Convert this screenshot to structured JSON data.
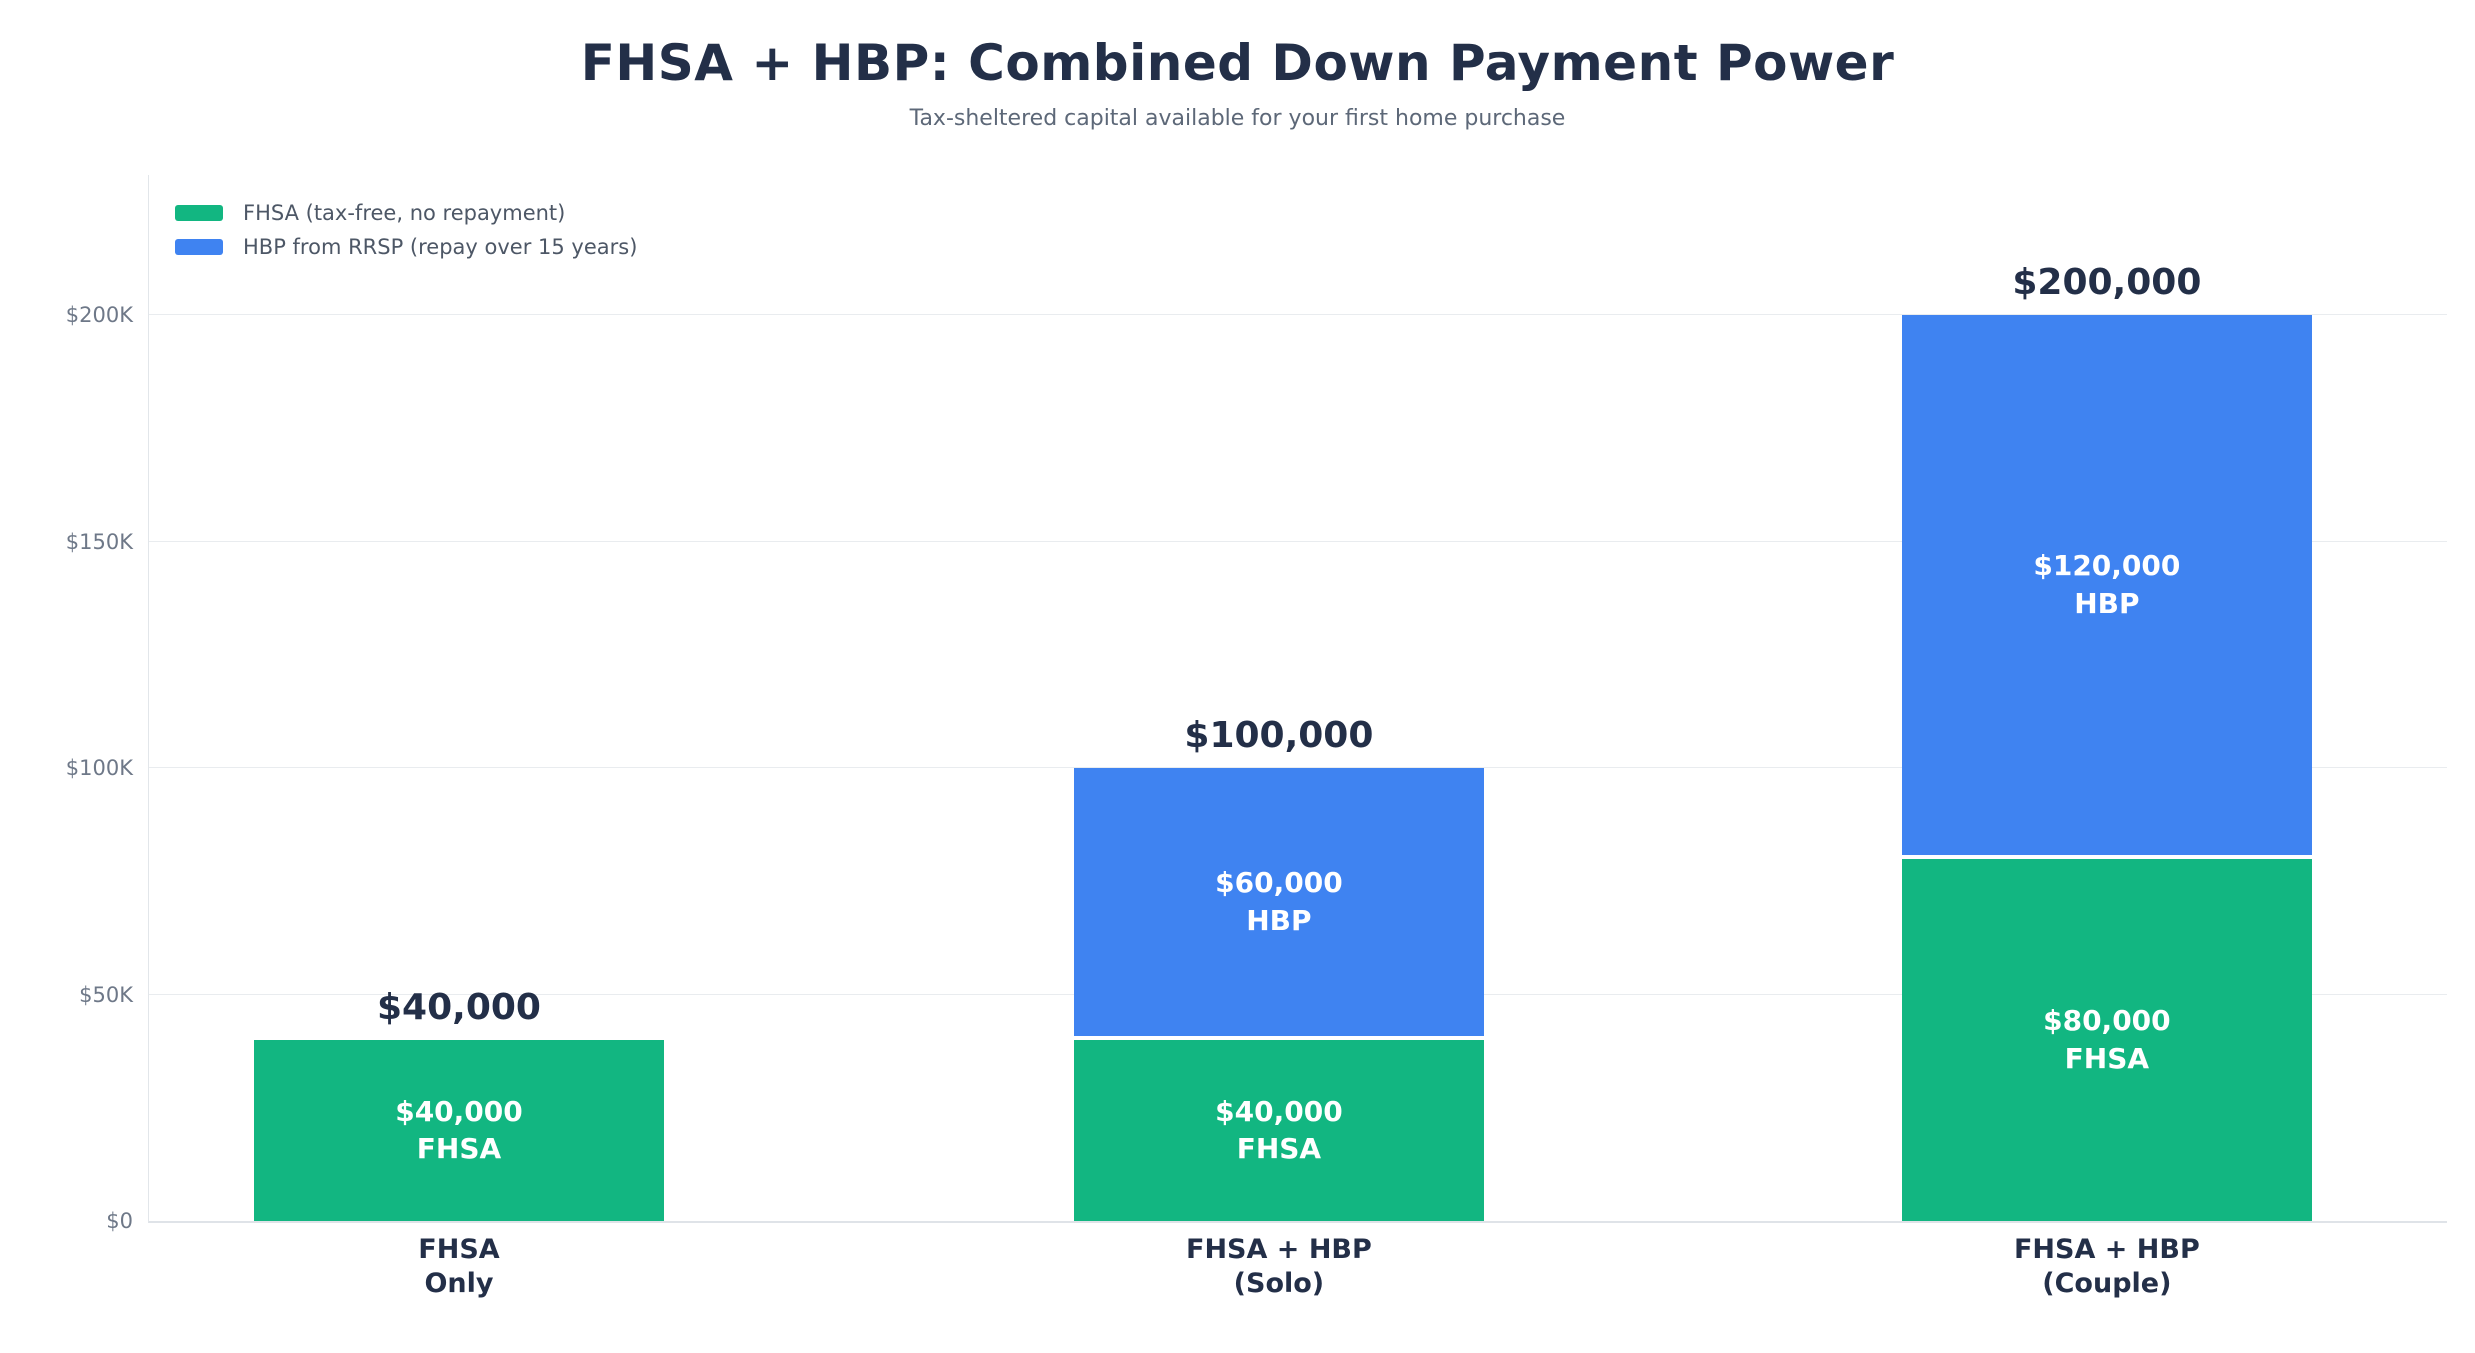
{
  "title": "FHSA + HBP: Combined Down Payment Power",
  "subtitle": "Tax-sheltered capital available for your first home purchase",
  "colors": {
    "fhsa_green": "#12b681",
    "hbp_blue": "#3f83f1",
    "heading_navy": "#232f48",
    "subtitle_gray": "#5d6878",
    "tick_gray": "#6e7888",
    "legend_gray": "#4d5766",
    "gridline": "#e9ecef",
    "bar_label_white": "#ffffff"
  },
  "legend": {
    "items": [
      {
        "label": "FHSA (tax-free, no repayment)",
        "color": "#12b681"
      },
      {
        "label": "HBP from RRSP (repay over 15 years)",
        "color": "#3f83f1"
      }
    ]
  },
  "chart_data": {
    "type": "bar",
    "stacked": true,
    "title": "FHSA + HBP: Combined Down Payment Power",
    "subtitle": "Tax-sheltered capital available for your first home purchase",
    "categories": [
      [
        "FHSA",
        "Only"
      ],
      [
        "FHSA + HBP",
        "(Solo)"
      ],
      [
        "FHSA + HBP",
        "(Couple)"
      ]
    ],
    "series": [
      {
        "name": "FHSA (tax-free, no repayment)",
        "short_label": "FHSA",
        "color": "#12b681",
        "values": [
          40000,
          40000,
          80000
        ],
        "value_labels": [
          "$40,000",
          "$40,000",
          "$80,000"
        ]
      },
      {
        "name": "HBP from RRSP (repay over 15 years)",
        "short_label": "HBP",
        "color": "#3f83f1",
        "values": [
          0,
          60000,
          120000
        ],
        "value_labels": [
          "",
          "$60,000",
          "$120,000"
        ]
      }
    ],
    "totals": [
      40000,
      100000,
      200000
    ],
    "total_labels": [
      "$40,000",
      "$100,000",
      "$200,000"
    ],
    "y_axis": {
      "ticks": [
        {
          "value": 0,
          "label": "$0"
        },
        {
          "value": 50000,
          "label": "$50K"
        },
        {
          "value": 100000,
          "label": "$100K"
        },
        {
          "value": 150000,
          "label": "$150K"
        },
        {
          "value": 200000,
          "label": "$200K"
        }
      ]
    },
    "ylim": [
      0,
      231000
    ],
    "grid": true,
    "legend_position": "upper-left"
  }
}
